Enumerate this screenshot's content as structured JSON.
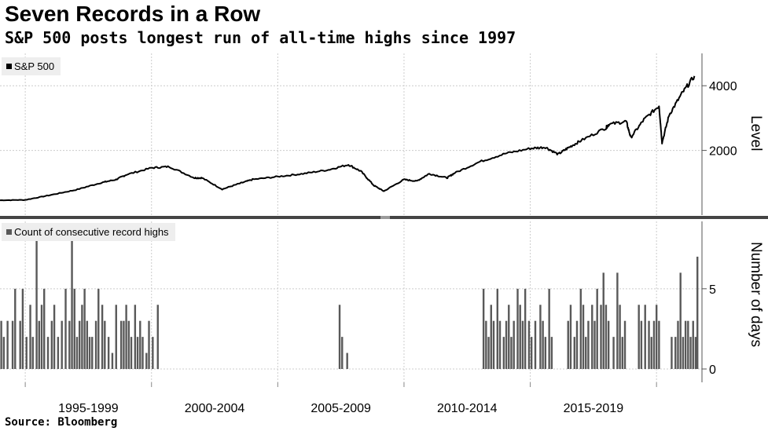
{
  "header": {
    "title": "Seven Records in a Row",
    "subtitle": "S&P 500 posts longest run of all-time highs since 1997"
  },
  "footer": {
    "source": "Source: Bloomberg"
  },
  "colors": {
    "line": "#000000",
    "bars": "#595959",
    "grid": "#cccccc",
    "divider": "#444444",
    "legend_bg": "#eeeeee"
  },
  "chart_data": [
    {
      "type": "line",
      "legend": "S&P 500",
      "ylabel": "Level",
      "yticks": [
        2000,
        4000
      ],
      "ylim": [
        0,
        5000
      ],
      "xlim": [
        1994.0,
        2021.8
      ],
      "grid": true,
      "legend_position": "top-left",
      "series": [
        {
          "name": "S&P 500",
          "x": [
            1994.0,
            1995.0,
            1996.0,
            1997.0,
            1998.0,
            1998.6,
            1999.0,
            2000.0,
            2000.7,
            2001.7,
            2002.0,
            2002.8,
            2003.5,
            2004.0,
            2005.0,
            2006.0,
            2007.0,
            2007.8,
            2008.3,
            2008.8,
            2009.2,
            2010.0,
            2010.5,
            2011.0,
            2011.7,
            2012.0,
            2013.0,
            2014.0,
            2015.0,
            2015.6,
            2016.1,
            2016.5,
            2017.0,
            2018.0,
            2018.1,
            2018.8,
            2018.98,
            2019.5,
            2020.1,
            2020.22,
            2020.5,
            2021.0,
            2021.5
          ],
          "y": [
            460,
            470,
            620,
            780,
            1000,
            1100,
            1250,
            1460,
            1500,
            1150,
            1150,
            800,
            980,
            1100,
            1190,
            1280,
            1400,
            1560,
            1350,
            920,
            740,
            1100,
            1050,
            1280,
            1150,
            1300,
            1650,
            1900,
            2060,
            2100,
            1880,
            2080,
            2300,
            2700,
            2800,
            2900,
            2400,
            2950,
            3380,
            2240,
            3100,
            3750,
            4300
          ]
        }
      ]
    },
    {
      "type": "bar",
      "legend": "Count of consecutive record highs",
      "ylabel": "Number of days",
      "yticks": [
        0,
        5
      ],
      "ylim": [
        0,
        9.2
      ],
      "xlim": [
        1994.0,
        2021.8
      ],
      "grid": true,
      "legend_position": "top-left",
      "xtick_labels": [
        "1995-1999",
        "2000-2004",
        "2005-2009",
        "2010-2014",
        "2015-2019"
      ],
      "series": [
        {
          "name": "Count of consecutive record highs",
          "x": [
            1994.05,
            1994.15,
            1994.3,
            1994.5,
            1994.6,
            1994.8,
            1994.9,
            1995.05,
            1995.2,
            1995.3,
            1995.45,
            1995.55,
            1995.65,
            1995.75,
            1995.9,
            1996.05,
            1996.15,
            1996.3,
            1996.45,
            1996.6,
            1996.75,
            1996.85,
            1996.95,
            1997.05,
            1997.15,
            1997.25,
            1997.35,
            1997.45,
            1997.55,
            1997.65,
            1997.8,
            1997.9,
            1998.05,
            1998.15,
            1998.3,
            1998.45,
            1998.6,
            1998.8,
            1998.9,
            1999.0,
            1999.1,
            1999.2,
            1999.35,
            1999.45,
            1999.55,
            1999.65,
            1999.8,
            1999.9,
            2000.05,
            2000.25,
            2007.45,
            2007.55,
            2007.75,
            2013.15,
            2013.25,
            2013.35,
            2013.45,
            2013.55,
            2013.7,
            2013.8,
            2013.95,
            2014.05,
            2014.15,
            2014.25,
            2014.35,
            2014.5,
            2014.6,
            2014.7,
            2014.8,
            2014.95,
            2015.05,
            2015.2,
            2015.4,
            2015.5,
            2015.6,
            2015.75,
            2015.85,
            2016.5,
            2016.6,
            2016.75,
            2016.85,
            2017.0,
            2017.1,
            2017.2,
            2017.3,
            2017.45,
            2017.55,
            2017.65,
            2017.8,
            2017.9,
            2018.0,
            2018.1,
            2018.3,
            2018.45,
            2018.55,
            2018.65,
            2018.75,
            2019.3,
            2019.4,
            2019.55,
            2019.7,
            2019.8,
            2019.9,
            2020.0,
            2020.1,
            2020.6,
            2020.75,
            2020.85,
            2020.95,
            2021.05,
            2021.15,
            2021.25,
            2021.35,
            2021.45,
            2021.55,
            2021.62
          ],
          "values": [
            3,
            2,
            3,
            3,
            5,
            3,
            5,
            2,
            4,
            2,
            8,
            3,
            4,
            5,
            2,
            3,
            4,
            2,
            3,
            5,
            3,
            8,
            5,
            2,
            3,
            4,
            5,
            3,
            2,
            2,
            3,
            5,
            4,
            3,
            2,
            1,
            4,
            3,
            3,
            4,
            3,
            2,
            4,
            2,
            3,
            2,
            1,
            3,
            2,
            4,
            4,
            2,
            1,
            5,
            3,
            2,
            4,
            3,
            5,
            3,
            2,
            3,
            4,
            2,
            3,
            5,
            4,
            3,
            5,
            3,
            2,
            3,
            4,
            3,
            2,
            5,
            2,
            3,
            4,
            2,
            3,
            5,
            4,
            2,
            3,
            4,
            3,
            5,
            4,
            6,
            4,
            3,
            2,
            6,
            4,
            2,
            3,
            4,
            3,
            4,
            3,
            2,
            3,
            4,
            3,
            2,
            2,
            3,
            6,
            2,
            3,
            3,
            2,
            3,
            2,
            7
          ]
        }
      ]
    }
  ]
}
